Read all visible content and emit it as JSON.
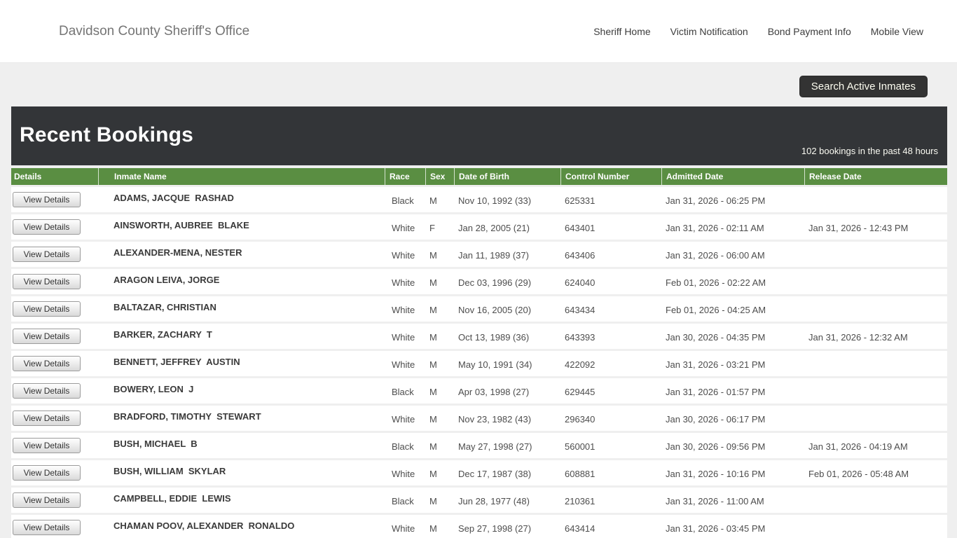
{
  "topbar": {
    "title": "Davidson County Sheriff's Office",
    "nav": [
      {
        "label": "Sheriff Home"
      },
      {
        "label": "Victim Notification"
      },
      {
        "label": "Bond Payment Info"
      },
      {
        "label": "Mobile View"
      }
    ]
  },
  "search_button_label": "Search Active Inmates",
  "bookings": {
    "title": "Recent Bookings",
    "summary": "102 bookings in the past 48 hours",
    "view_details_label": "View Details",
    "columns": [
      "Details",
      "Inmate Name",
      "Race",
      "Sex",
      "Date of Birth",
      "Control Number",
      "Admitted Date",
      "Release Date"
    ],
    "rows": [
      {
        "name": "ADAMS, JACQUE  RASHAD",
        "race": "Black",
        "sex": "M",
        "dob": "Nov 10, 1992 (33)",
        "control": "625331",
        "admitted": "Jan 31, 2026 - 06:25 PM",
        "released": ""
      },
      {
        "name": "AINSWORTH, AUBREE  BLAKE",
        "race": "White",
        "sex": "F",
        "dob": "Jan 28, 2005 (21)",
        "control": "643401",
        "admitted": "Jan 31, 2026 - 02:11 AM",
        "released": "Jan 31, 2026 - 12:43 PM"
      },
      {
        "name": "ALEXANDER-MENA, NESTER",
        "race": "White",
        "sex": "M",
        "dob": "Jan 11, 1989 (37)",
        "control": "643406",
        "admitted": "Jan 31, 2026 - 06:00 AM",
        "released": ""
      },
      {
        "name": "ARAGON LEIVA, JORGE",
        "race": "White",
        "sex": "M",
        "dob": "Dec 03, 1996 (29)",
        "control": "624040",
        "admitted": "Feb 01, 2026 - 02:22 AM",
        "released": ""
      },
      {
        "name": "BALTAZAR, CHRISTIAN",
        "race": "White",
        "sex": "M",
        "dob": "Nov 16, 2005 (20)",
        "control": "643434",
        "admitted": "Feb 01, 2026 - 04:25 AM",
        "released": ""
      },
      {
        "name": "BARKER, ZACHARY  T",
        "race": "White",
        "sex": "M",
        "dob": "Oct 13, 1989 (36)",
        "control": "643393",
        "admitted": "Jan 30, 2026 - 04:35 PM",
        "released": "Jan 31, 2026 - 12:32 AM"
      },
      {
        "name": "BENNETT, JEFFREY  AUSTIN",
        "race": "White",
        "sex": "M",
        "dob": "May 10, 1991 (34)",
        "control": "422092",
        "admitted": "Jan 31, 2026 - 03:21 PM",
        "released": ""
      },
      {
        "name": "BOWERY, LEON  J",
        "race": "Black",
        "sex": "M",
        "dob": "Apr 03, 1998 (27)",
        "control": "629445",
        "admitted": "Jan 31, 2026 - 01:57 PM",
        "released": ""
      },
      {
        "name": "BRADFORD, TIMOTHY  STEWART",
        "race": "White",
        "sex": "M",
        "dob": "Nov 23, 1982 (43)",
        "control": "296340",
        "admitted": "Jan 30, 2026 - 06:17 PM",
        "released": ""
      },
      {
        "name": "BUSH, MICHAEL  B",
        "race": "Black",
        "sex": "M",
        "dob": "May 27, 1998 (27)",
        "control": "560001",
        "admitted": "Jan 30, 2026 - 09:56 PM",
        "released": "Jan 31, 2026 - 04:19 AM"
      },
      {
        "name": "BUSH, WILLIAM  SKYLAR",
        "race": "White",
        "sex": "M",
        "dob": "Dec 17, 1987 (38)",
        "control": "608881",
        "admitted": "Jan 31, 2026 - 10:16 PM",
        "released": "Feb 01, 2026 - 05:48 AM"
      },
      {
        "name": "CAMPBELL, EDDIE  LEWIS",
        "race": "Black",
        "sex": "M",
        "dob": "Jun 28, 1977 (48)",
        "control": "210361",
        "admitted": "Jan 31, 2026 - 11:00 AM",
        "released": ""
      },
      {
        "name": "CHAMAN POOV, ALEXANDER  RONALDO",
        "race": "White",
        "sex": "M",
        "dob": "Sep 27, 1998 (27)",
        "control": "643414",
        "admitted": "Jan 31, 2026 - 03:45 PM",
        "released": ""
      }
    ]
  },
  "colors": {
    "accent_green": "#5a8e42",
    "header_dark": "#333538",
    "topbar_bg": "#ffffff",
    "page_bg": "#efefef"
  }
}
